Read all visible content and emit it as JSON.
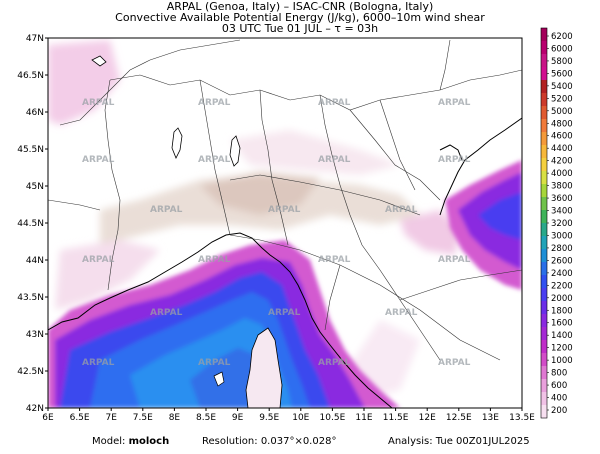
{
  "header": {
    "line1": "ARPAL (Genoa, Italy)  –  ISAC-CNR (Bologna, Italy)",
    "line2": "Convective Available Potential Energy (J/kg), 6000–10m wind shear",
    "line3": "03 UTC Tue 01 JUL  –  τ = 03h"
  },
  "map": {
    "lat_ticks": [
      "47N",
      "46.5N",
      "46N",
      "45.5N",
      "45N",
      "44.5N",
      "44N",
      "43.5N",
      "43N",
      "42.5N",
      "42N"
    ],
    "lon_ticks": [
      "6E",
      "6.5E",
      "7E",
      "7.5E",
      "8E",
      "8.5E",
      "9E",
      "9.5E",
      "10E",
      "10.5E",
      "11E",
      "11.5E",
      "12E",
      "12.5E",
      "13E",
      "13.5E"
    ],
    "watermark_text": "ARPAL"
  },
  "colorbar": {
    "labels": [
      "6200",
      "6000",
      "5800",
      "5600",
      "5400",
      "5200",
      "5000",
      "4800",
      "4600",
      "4400",
      "4200",
      "4000",
      "3800",
      "3600",
      "3400",
      "3200",
      "3000",
      "2800",
      "2600",
      "2400",
      "2200",
      "2000",
      "1800",
      "1600",
      "1400",
      "1200",
      "1000",
      "800",
      "600",
      "400",
      "200"
    ],
    "colors": [
      "#a3005a",
      "#b8006e",
      "#c71585",
      "#d10f8f",
      "#b22222",
      "#cc3a2a",
      "#e05a30",
      "#f07a3a",
      "#f49a3a",
      "#f7b83a",
      "#f4d03f",
      "#d8e043",
      "#a6d63a",
      "#6fc24a",
      "#3fb35a",
      "#2aa88a",
      "#22a3b8",
      "#1f8fd6",
      "#2a6fe8",
      "#3050f0",
      "#4a3ef0",
      "#6a2ee8",
      "#8a2ae0",
      "#a42ad4",
      "#c02ec8",
      "#d24cc8",
      "#df78d2",
      "#e9a0dc",
      "#f1c2e6",
      "#f7dff0"
    ]
  },
  "footer": {
    "model_label": "Model:",
    "model_value": "moloch",
    "resolution_label": "Resolution:",
    "resolution_value": "0.037°×0.028°",
    "analysis_label": "Analysis:",
    "analysis_value": "Tue 00Z01JUL2025"
  }
}
